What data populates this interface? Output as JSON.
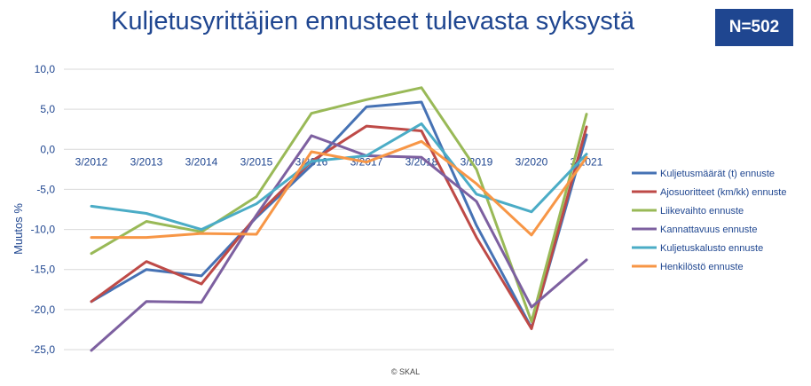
{
  "title": "Kuljetusyrittäjien ennusteet tulevasta syksystä",
  "badge": "N=502",
  "chart_data": {
    "type": "line",
    "title": "Kuljetusyrittäjien ennusteet tulevasta syksystä",
    "ylabel": "Muutos %",
    "xlabel": "",
    "ylim": [
      -25,
      10
    ],
    "yticks": [
      "10,0",
      "5,0",
      "0,0",
      "-5,0",
      "-10,0",
      "-15,0",
      "-20,0",
      "-25,0"
    ],
    "ytick_values": [
      10,
      5,
      0,
      -5,
      -10,
      -15,
      -20,
      -25
    ],
    "categories": [
      "3/2012",
      "3/2013",
      "3/2014",
      "3/2015",
      "3/2016",
      "3/2017",
      "3/2018",
      "3/2019",
      "3/2020",
      "3/2021"
    ],
    "grid": true,
    "legend_position": "right",
    "series": [
      {
        "name": "Kuljetusmäärät (t) ennuste",
        "color": "#4672b4",
        "values": [
          -19,
          -15,
          -15.8,
          -8.5,
          -2,
          5.3,
          5.9,
          -9.5,
          -22.3,
          1.8
        ]
      },
      {
        "name": "Ajosuoritteet (km/kk) ennuste",
        "color": "#be4a47",
        "values": [
          -19,
          -14,
          -16.8,
          -8.3,
          -1.5,
          2.9,
          2.3,
          -11,
          -22.4,
          2.8
        ]
      },
      {
        "name": "Liikevaihto ennuste",
        "color": "#99b957",
        "values": [
          -13,
          -9,
          -10.3,
          -5.9,
          4.5,
          6.2,
          7.7,
          -2.5,
          -21.5,
          4.4
        ]
      },
      {
        "name": "Kannattavuus ennuste",
        "color": "#7d60a0",
        "values": [
          -25.1,
          -19,
          -19.1,
          -8.2,
          1.7,
          -0.8,
          -1,
          -6.5,
          -19.7,
          -13.8
        ]
      },
      {
        "name": "Kuljetuskalusto ennuste",
        "color": "#4bacc6",
        "values": [
          -7.1,
          -8,
          -10,
          -6.8,
          -1.5,
          -0.8,
          3.2,
          -5.6,
          -7.8,
          -0.6
        ]
      },
      {
        "name": "Henkilöstö ennuste",
        "color": "#f79646",
        "values": [
          -11,
          -11,
          -10.5,
          -10.6,
          -0.3,
          -1.6,
          1,
          -4.3,
          -10.7,
          -1
        ]
      }
    ]
  },
  "footer": "© SKAL"
}
